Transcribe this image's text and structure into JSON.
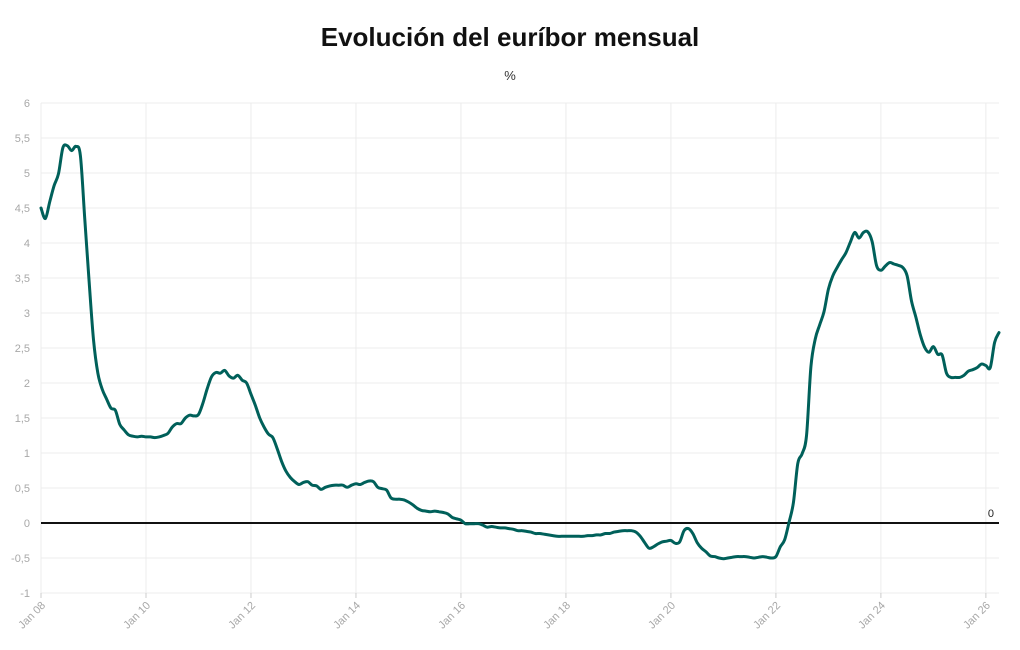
{
  "chart_data": {
    "type": "line",
    "title": "Evolución del euríbor mensual",
    "subtitle": "%",
    "xlabel": "",
    "ylabel": "",
    "ylim": [
      -1,
      6
    ],
    "xlim": [
      "2008-01",
      "2026-04"
    ],
    "grid": true,
    "reference_line": {
      "y": 0,
      "label": "0"
    },
    "y_ticks": [
      "-1",
      "-0,5",
      "0",
      "0,5",
      "1",
      "1,5",
      "2",
      "2,5",
      "3",
      "3,5",
      "4",
      "4,5",
      "5",
      "5,5",
      "6"
    ],
    "x_ticks": [
      {
        "label": "Jan 08",
        "x": "2008-01"
      },
      {
        "label": "Jan 10",
        "x": "2010-01"
      },
      {
        "label": "Jan 12",
        "x": "2012-01"
      },
      {
        "label": "Jan 14",
        "x": "2014-01"
      },
      {
        "label": "Jan 16",
        "x": "2016-01"
      },
      {
        "label": "Jan 18",
        "x": "2018-01"
      },
      {
        "label": "Jan 20",
        "x": "2020-01"
      },
      {
        "label": "Jan 22",
        "x": "2022-01"
      },
      {
        "label": "Jan 24",
        "x": "2024-01"
      },
      {
        "label": "Jan 26",
        "x": "2026-01"
      }
    ],
    "series": [
      {
        "color": "#00605a",
        "points": [
          [
            "2008-01",
            4.5
          ],
          [
            "2008-02",
            4.35
          ],
          [
            "2008-03",
            4.59
          ],
          [
            "2008-04",
            4.82
          ],
          [
            "2008-05",
            4.99
          ],
          [
            "2008-06",
            5.36
          ],
          [
            "2008-07",
            5.39
          ],
          [
            "2008-08",
            5.32
          ],
          [
            "2008-09",
            5.38
          ],
          [
            "2008-10",
            5.25
          ],
          [
            "2008-11",
            4.35
          ],
          [
            "2008-12",
            3.45
          ],
          [
            "2009-01",
            2.62
          ],
          [
            "2009-02",
            2.14
          ],
          [
            "2009-03",
            1.91
          ],
          [
            "2009-04",
            1.77
          ],
          [
            "2009-05",
            1.64
          ],
          [
            "2009-06",
            1.61
          ],
          [
            "2009-07",
            1.41
          ],
          [
            "2009-08",
            1.33
          ],
          [
            "2009-09",
            1.26
          ],
          [
            "2009-10",
            1.24
          ],
          [
            "2009-11",
            1.23
          ],
          [
            "2009-12",
            1.24
          ],
          [
            "2010-01",
            1.23
          ],
          [
            "2010-02",
            1.23
          ],
          [
            "2010-03",
            1.22
          ],
          [
            "2010-04",
            1.23
          ],
          [
            "2010-05",
            1.25
          ],
          [
            "2010-06",
            1.28
          ],
          [
            "2010-07",
            1.37
          ],
          [
            "2010-08",
            1.42
          ],
          [
            "2010-09",
            1.42
          ],
          [
            "2010-10",
            1.5
          ],
          [
            "2010-11",
            1.54
          ],
          [
            "2010-12",
            1.53
          ],
          [
            "2011-01",
            1.55
          ],
          [
            "2011-02",
            1.71
          ],
          [
            "2011-03",
            1.92
          ],
          [
            "2011-04",
            2.09
          ],
          [
            "2011-05",
            2.15
          ],
          [
            "2011-06",
            2.14
          ],
          [
            "2011-07",
            2.18
          ],
          [
            "2011-08",
            2.1
          ],
          [
            "2011-09",
            2.07
          ],
          [
            "2011-10",
            2.11
          ],
          [
            "2011-11",
            2.04
          ],
          [
            "2011-12",
            2.0
          ],
          [
            "2012-01",
            1.84
          ],
          [
            "2012-02",
            1.68
          ],
          [
            "2012-03",
            1.5
          ],
          [
            "2012-04",
            1.37
          ],
          [
            "2012-05",
            1.27
          ],
          [
            "2012-06",
            1.22
          ],
          [
            "2012-07",
            1.06
          ],
          [
            "2012-08",
            0.88
          ],
          [
            "2012-09",
            0.74
          ],
          [
            "2012-10",
            0.65
          ],
          [
            "2012-11",
            0.59
          ],
          [
            "2012-12",
            0.55
          ],
          [
            "2013-01",
            0.58
          ],
          [
            "2013-02",
            0.59
          ],
          [
            "2013-03",
            0.54
          ],
          [
            "2013-04",
            0.53
          ],
          [
            "2013-05",
            0.48
          ],
          [
            "2013-06",
            0.51
          ],
          [
            "2013-07",
            0.53
          ],
          [
            "2013-08",
            0.54
          ],
          [
            "2013-09",
            0.54
          ],
          [
            "2013-10",
            0.54
          ],
          [
            "2013-11",
            0.51
          ],
          [
            "2013-12",
            0.54
          ],
          [
            "2014-01",
            0.56
          ],
          [
            "2014-02",
            0.55
          ],
          [
            "2014-03",
            0.58
          ],
          [
            "2014-04",
            0.6
          ],
          [
            "2014-05",
            0.59
          ],
          [
            "2014-06",
            0.51
          ],
          [
            "2014-07",
            0.49
          ],
          [
            "2014-08",
            0.47
          ],
          [
            "2014-09",
            0.36
          ],
          [
            "2014-10",
            0.34
          ],
          [
            "2014-11",
            0.34
          ],
          [
            "2014-12",
            0.33
          ],
          [
            "2015-01",
            0.3
          ],
          [
            "2015-02",
            0.26
          ],
          [
            "2015-03",
            0.21
          ],
          [
            "2015-04",
            0.18
          ],
          [
            "2015-05",
            0.17
          ],
          [
            "2015-06",
            0.16
          ],
          [
            "2015-07",
            0.17
          ],
          [
            "2015-08",
            0.16
          ],
          [
            "2015-09",
            0.15
          ],
          [
            "2015-10",
            0.13
          ],
          [
            "2015-11",
            0.08
          ],
          [
            "2015-12",
            0.06
          ],
          [
            "2016-01",
            0.04
          ],
          [
            "2016-02",
            -0.01
          ],
          [
            "2016-03",
            -0.01
          ],
          [
            "2016-04",
            -0.01
          ],
          [
            "2016-05",
            -0.01
          ],
          [
            "2016-06",
            -0.03
          ],
          [
            "2016-07",
            -0.06
          ],
          [
            "2016-08",
            -0.05
          ],
          [
            "2016-09",
            -0.06
          ],
          [
            "2016-10",
            -0.07
          ],
          [
            "2016-11",
            -0.07
          ],
          [
            "2016-12",
            -0.08
          ],
          [
            "2017-01",
            -0.09
          ],
          [
            "2017-02",
            -0.11
          ],
          [
            "2017-03",
            -0.11
          ],
          [
            "2017-04",
            -0.12
          ],
          [
            "2017-05",
            -0.13
          ],
          [
            "2017-06",
            -0.15
          ],
          [
            "2017-07",
            -0.15
          ],
          [
            "2017-08",
            -0.16
          ],
          [
            "2017-09",
            -0.17
          ],
          [
            "2017-10",
            -0.18
          ],
          [
            "2017-11",
            -0.19
          ],
          [
            "2017-12",
            -0.19
          ],
          [
            "2018-01",
            -0.19
          ],
          [
            "2018-02",
            -0.19
          ],
          [
            "2018-03",
            -0.19
          ],
          [
            "2018-04",
            -0.19
          ],
          [
            "2018-05",
            -0.19
          ],
          [
            "2018-06",
            -0.18
          ],
          [
            "2018-07",
            -0.18
          ],
          [
            "2018-08",
            -0.17
          ],
          [
            "2018-09",
            -0.17
          ],
          [
            "2018-10",
            -0.15
          ],
          [
            "2018-11",
            -0.15
          ],
          [
            "2018-12",
            -0.13
          ],
          [
            "2019-01",
            -0.12
          ],
          [
            "2019-02",
            -0.11
          ],
          [
            "2019-03",
            -0.11
          ],
          [
            "2019-04",
            -0.11
          ],
          [
            "2019-05",
            -0.13
          ],
          [
            "2019-06",
            -0.19
          ],
          [
            "2019-07",
            -0.28
          ],
          [
            "2019-08",
            -0.36
          ],
          [
            "2019-09",
            -0.34
          ],
          [
            "2019-10",
            -0.3
          ],
          [
            "2019-11",
            -0.27
          ],
          [
            "2019-12",
            -0.26
          ],
          [
            "2020-01",
            -0.25
          ],
          [
            "2020-02",
            -0.29
          ],
          [
            "2020-03",
            -0.27
          ],
          [
            "2020-04",
            -0.11
          ],
          [
            "2020-05",
            -0.08
          ],
          [
            "2020-06",
            -0.15
          ],
          [
            "2020-07",
            -0.28
          ],
          [
            "2020-08",
            -0.36
          ],
          [
            "2020-09",
            -0.41
          ],
          [
            "2020-10",
            -0.47
          ],
          [
            "2020-11",
            -0.48
          ],
          [
            "2020-12",
            -0.5
          ],
          [
            "2021-01",
            -0.51
          ],
          [
            "2021-02",
            -0.5
          ],
          [
            "2021-03",
            -0.49
          ],
          [
            "2021-04",
            -0.48
          ],
          [
            "2021-05",
            -0.48
          ],
          [
            "2021-06",
            -0.48
          ],
          [
            "2021-07",
            -0.49
          ],
          [
            "2021-08",
            -0.5
          ],
          [
            "2021-09",
            -0.49
          ],
          [
            "2021-10",
            -0.48
          ],
          [
            "2021-11",
            -0.49
          ],
          [
            "2021-12",
            -0.5
          ],
          [
            "2022-01",
            -0.48
          ],
          [
            "2022-02",
            -0.34
          ],
          [
            "2022-03",
            -0.24
          ],
          [
            "2022-04",
            0.01
          ],
          [
            "2022-05",
            0.29
          ],
          [
            "2022-06",
            0.85
          ],
          [
            "2022-07",
            0.99
          ],
          [
            "2022-08",
            1.25
          ],
          [
            "2022-09",
            2.23
          ],
          [
            "2022-10",
            2.63
          ],
          [
            "2022-11",
            2.83
          ],
          [
            "2022-12",
            3.02
          ],
          [
            "2023-01",
            3.34
          ],
          [
            "2023-02",
            3.53
          ],
          [
            "2023-03",
            3.65
          ],
          [
            "2023-04",
            3.76
          ],
          [
            "2023-05",
            3.86
          ],
          [
            "2023-06",
            4.01
          ],
          [
            "2023-07",
            4.15
          ],
          [
            "2023-08",
            4.07
          ],
          [
            "2023-09",
            4.15
          ],
          [
            "2023-10",
            4.16
          ],
          [
            "2023-11",
            4.02
          ],
          [
            "2023-12",
            3.68
          ],
          [
            "2024-01",
            3.61
          ],
          [
            "2024-02",
            3.67
          ],
          [
            "2024-03",
            3.72
          ],
          [
            "2024-04",
            3.7
          ],
          [
            "2024-05",
            3.68
          ],
          [
            "2024-06",
            3.65
          ],
          [
            "2024-07",
            3.53
          ],
          [
            "2024-08",
            3.17
          ],
          [
            "2024-09",
            2.94
          ],
          [
            "2024-10",
            2.69
          ],
          [
            "2024-11",
            2.51
          ],
          [
            "2024-12",
            2.44
          ],
          [
            "2025-01",
            2.52
          ],
          [
            "2025-02",
            2.41
          ],
          [
            "2025-03",
            2.4
          ],
          [
            "2025-04",
            2.14
          ],
          [
            "2025-05",
            2.08
          ],
          [
            "2025-06",
            2.08
          ],
          [
            "2025-07",
            2.08
          ],
          [
            "2025-08",
            2.11
          ],
          [
            "2025-09",
            2.17
          ],
          [
            "2025-10",
            2.19
          ],
          [
            "2025-11",
            2.22
          ],
          [
            "2025-12",
            2.27
          ],
          [
            "2026-01",
            2.25
          ],
          [
            "2026-02",
            2.22
          ],
          [
            "2026-03",
            2.58
          ],
          [
            "2026-04",
            2.72
          ]
        ]
      }
    ]
  }
}
